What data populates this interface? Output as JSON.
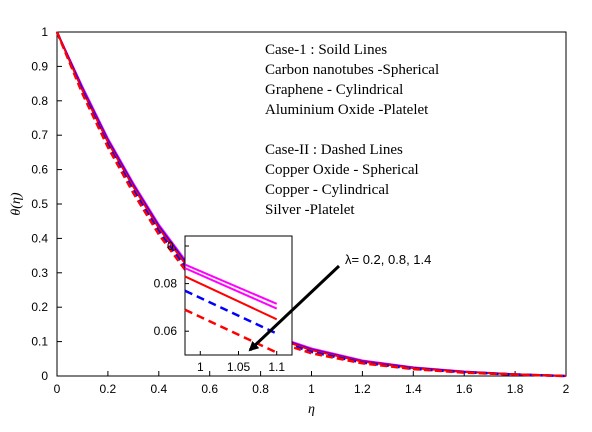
{
  "chart_data": [
    {
      "type": "line",
      "xlabel": "η",
      "ylabel": "θ(η)",
      "xlim": [
        0,
        2
      ],
      "ylim": [
        0,
        1
      ],
      "xticks": [
        "0",
        "0.2",
        "0.4",
        "0.6",
        "0.8",
        "1",
        "1.2",
        "1.4",
        "1.6",
        "1.8",
        "2"
      ],
      "yticks": [
        "0",
        "0.1",
        "0.2",
        "0.3",
        "0.4",
        "0.5",
        "0.6",
        "0.7",
        "0.8",
        "0.9",
        "1"
      ],
      "grid": false,
      "legend_text": [
        "Case-1                 : Soild Lines",
        "Carbon nanotubes -Spherical",
        "Graphene               - Cylindrical",
        "Aluminium Oxide   -Platelet",
        "",
        "Case-II            :  Dashed Lines",
        "Copper Oxide -  Spherical",
        "Copper            - Cylindrical",
        "Silver                -Platelet"
      ],
      "legend_placement": "top-right",
      "annotation": "λ= 0.2, 0.8, 1.4",
      "x": [
        0,
        0.1,
        0.2,
        0.3,
        0.4,
        0.5,
        0.6,
        0.7,
        0.8,
        0.9,
        1.0,
        1.2,
        1.4,
        1.6,
        1.8,
        2.0
      ],
      "series": [
        {
          "color": "#ff00ff",
          "style": "solid",
          "values": [
            1.0,
            0.84,
            0.69,
            0.56,
            0.44,
            0.34,
            0.26,
            0.19,
            0.14,
            0.105,
            0.08,
            0.045,
            0.025,
            0.013,
            0.005,
            0.0
          ]
        },
        {
          "color": "#0000ff",
          "style": "solid",
          "values": [
            1.0,
            0.835,
            0.685,
            0.555,
            0.435,
            0.335,
            0.255,
            0.186,
            0.137,
            0.102,
            0.077,
            0.043,
            0.024,
            0.012,
            0.005,
            0.0
          ]
        },
        {
          "color": "#ff0000",
          "style": "solid",
          "values": [
            1.0,
            0.83,
            0.68,
            0.55,
            0.43,
            0.33,
            0.25,
            0.182,
            0.134,
            0.1,
            0.075,
            0.042,
            0.023,
            0.012,
            0.005,
            0.0
          ]
        },
        {
          "color": "#0000ff",
          "style": "dashed",
          "values": [
            1.0,
            0.825,
            0.672,
            0.54,
            0.42,
            0.32,
            0.24,
            0.175,
            0.128,
            0.095,
            0.07,
            0.039,
            0.021,
            0.011,
            0.004,
            0.0
          ]
        },
        {
          "color": "#ff0000",
          "style": "dashed",
          "values": [
            1.0,
            0.82,
            0.665,
            0.532,
            0.412,
            0.312,
            0.232,
            0.168,
            0.122,
            0.09,
            0.066,
            0.037,
            0.02,
            0.01,
            0.004,
            0.0
          ]
        }
      ]
    },
    {
      "type": "line",
      "role": "inset",
      "xlim": [
        0.98,
        1.12
      ],
      "ylim": [
        0.05,
        0.1
      ],
      "xticks": [
        "1",
        "1.05",
        "1.1"
      ],
      "yticks": [
        "0.06",
        "0.08",
        "0."
      ],
      "x": [
        0.98,
        1.1
      ],
      "series": [
        {
          "color": "#ff00ff",
          "style": "solid",
          "values": [
            0.088,
            0.0715
          ]
        },
        {
          "color": "#ff00ff",
          "style": "solid",
          "values": [
            0.0865,
            0.0695
          ]
        },
        {
          "color": "#ff0000",
          "style": "solid",
          "values": [
            0.083,
            0.065
          ]
        },
        {
          "color": "#0000ff",
          "style": "dashed",
          "values": [
            0.077,
            0.059
          ]
        },
        {
          "color": "#ff0000",
          "style": "dashed",
          "values": [
            0.069,
            0.051
          ]
        }
      ]
    }
  ]
}
